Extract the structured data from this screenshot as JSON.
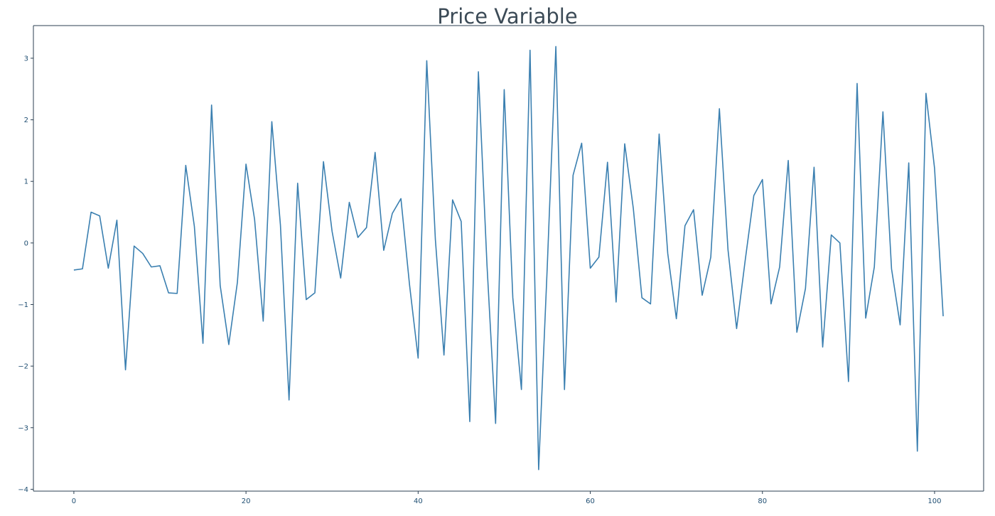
{
  "chart_data": {
    "type": "line",
    "title": "Price Variable",
    "xlabel": "",
    "ylabel": "",
    "xlim": [
      -4.7,
      105.7
    ],
    "ylim": [
      -4.03,
      3.53
    ],
    "xticks": [
      0,
      20,
      40,
      60,
      80,
      100
    ],
    "yticks": [
      -4,
      -3,
      -2,
      -1,
      0,
      1,
      2,
      3
    ],
    "xtick_labels": [
      "0",
      "20",
      "40",
      "60",
      "80",
      "100"
    ],
    "ytick_labels": [
      "−4",
      "−3",
      "−2",
      "−1",
      "0",
      "1",
      "2",
      "3"
    ],
    "grid": false,
    "line_color": "#3a7fb0",
    "axis_color": "#2b3f52",
    "title_color": "#3b4a56",
    "tick_label_color": "#1f4e72",
    "series": [
      {
        "x": [
          0,
          1,
          2,
          3,
          4,
          5,
          6,
          7,
          8,
          9,
          10,
          11,
          12,
          13,
          14,
          15,
          16,
          17,
          18,
          19,
          20,
          21,
          22,
          23,
          24,
          25,
          26,
          27,
          28,
          29,
          30,
          31,
          32,
          33,
          34,
          35,
          36,
          37,
          38,
          39,
          40,
          41,
          42,
          43,
          44,
          45,
          46,
          47,
          48,
          49,
          50,
          51,
          52,
          53,
          54,
          55,
          56,
          57,
          58,
          59,
          60,
          61,
          62,
          63,
          64,
          65,
          66,
          67,
          68,
          69,
          70,
          71,
          72,
          73,
          74,
          75,
          76,
          77,
          78,
          79,
          80,
          81,
          82,
          83,
          84,
          85,
          86,
          87,
          88,
          89,
          90,
          91,
          92,
          93,
          94,
          95,
          96,
          97,
          98,
          99,
          100,
          101
        ],
        "values": [
          -0.44,
          -0.42,
          0.5,
          0.44,
          -0.41,
          0.37,
          -2.06,
          -0.05,
          -0.17,
          -0.39,
          -0.37,
          -0.81,
          -0.82,
          1.26,
          0.27,
          -1.63,
          2.24,
          -0.69,
          -1.65,
          -0.64,
          1.28,
          0.38,
          -1.27,
          1.97,
          0.29,
          -2.55,
          0.97,
          -0.92,
          -0.81,
          1.32,
          0.19,
          -0.57,
          0.66,
          0.09,
          0.25,
          1.47,
          -0.12,
          0.48,
          0.72,
          -0.68,
          -1.87,
          2.96,
          0.06,
          -1.82,
          0.7,
          0.35,
          -2.9,
          2.78,
          -0.36,
          -2.93,
          2.49,
          -0.89,
          -2.38,
          3.13,
          -3.68,
          -0.39,
          3.19,
          -2.38,
          1.1,
          1.62,
          -0.41,
          -0.23,
          1.31,
          -0.96,
          1.61,
          0.56,
          -0.89,
          -0.99,
          1.77,
          -0.17,
          -1.23,
          0.28,
          0.54,
          -0.85,
          -0.23,
          2.18,
          -0.11,
          -1.39,
          -0.28,
          0.77,
          1.03,
          -0.99,
          -0.39,
          1.34,
          -1.45,
          -0.74,
          1.23,
          -1.69,
          0.13,
          0.0,
          -2.25,
          2.59,
          -1.22,
          -0.39,
          2.13,
          -0.42,
          -1.33,
          1.3,
          -3.38,
          2.43,
          1.21,
          -1.19
        ]
      }
    ]
  }
}
